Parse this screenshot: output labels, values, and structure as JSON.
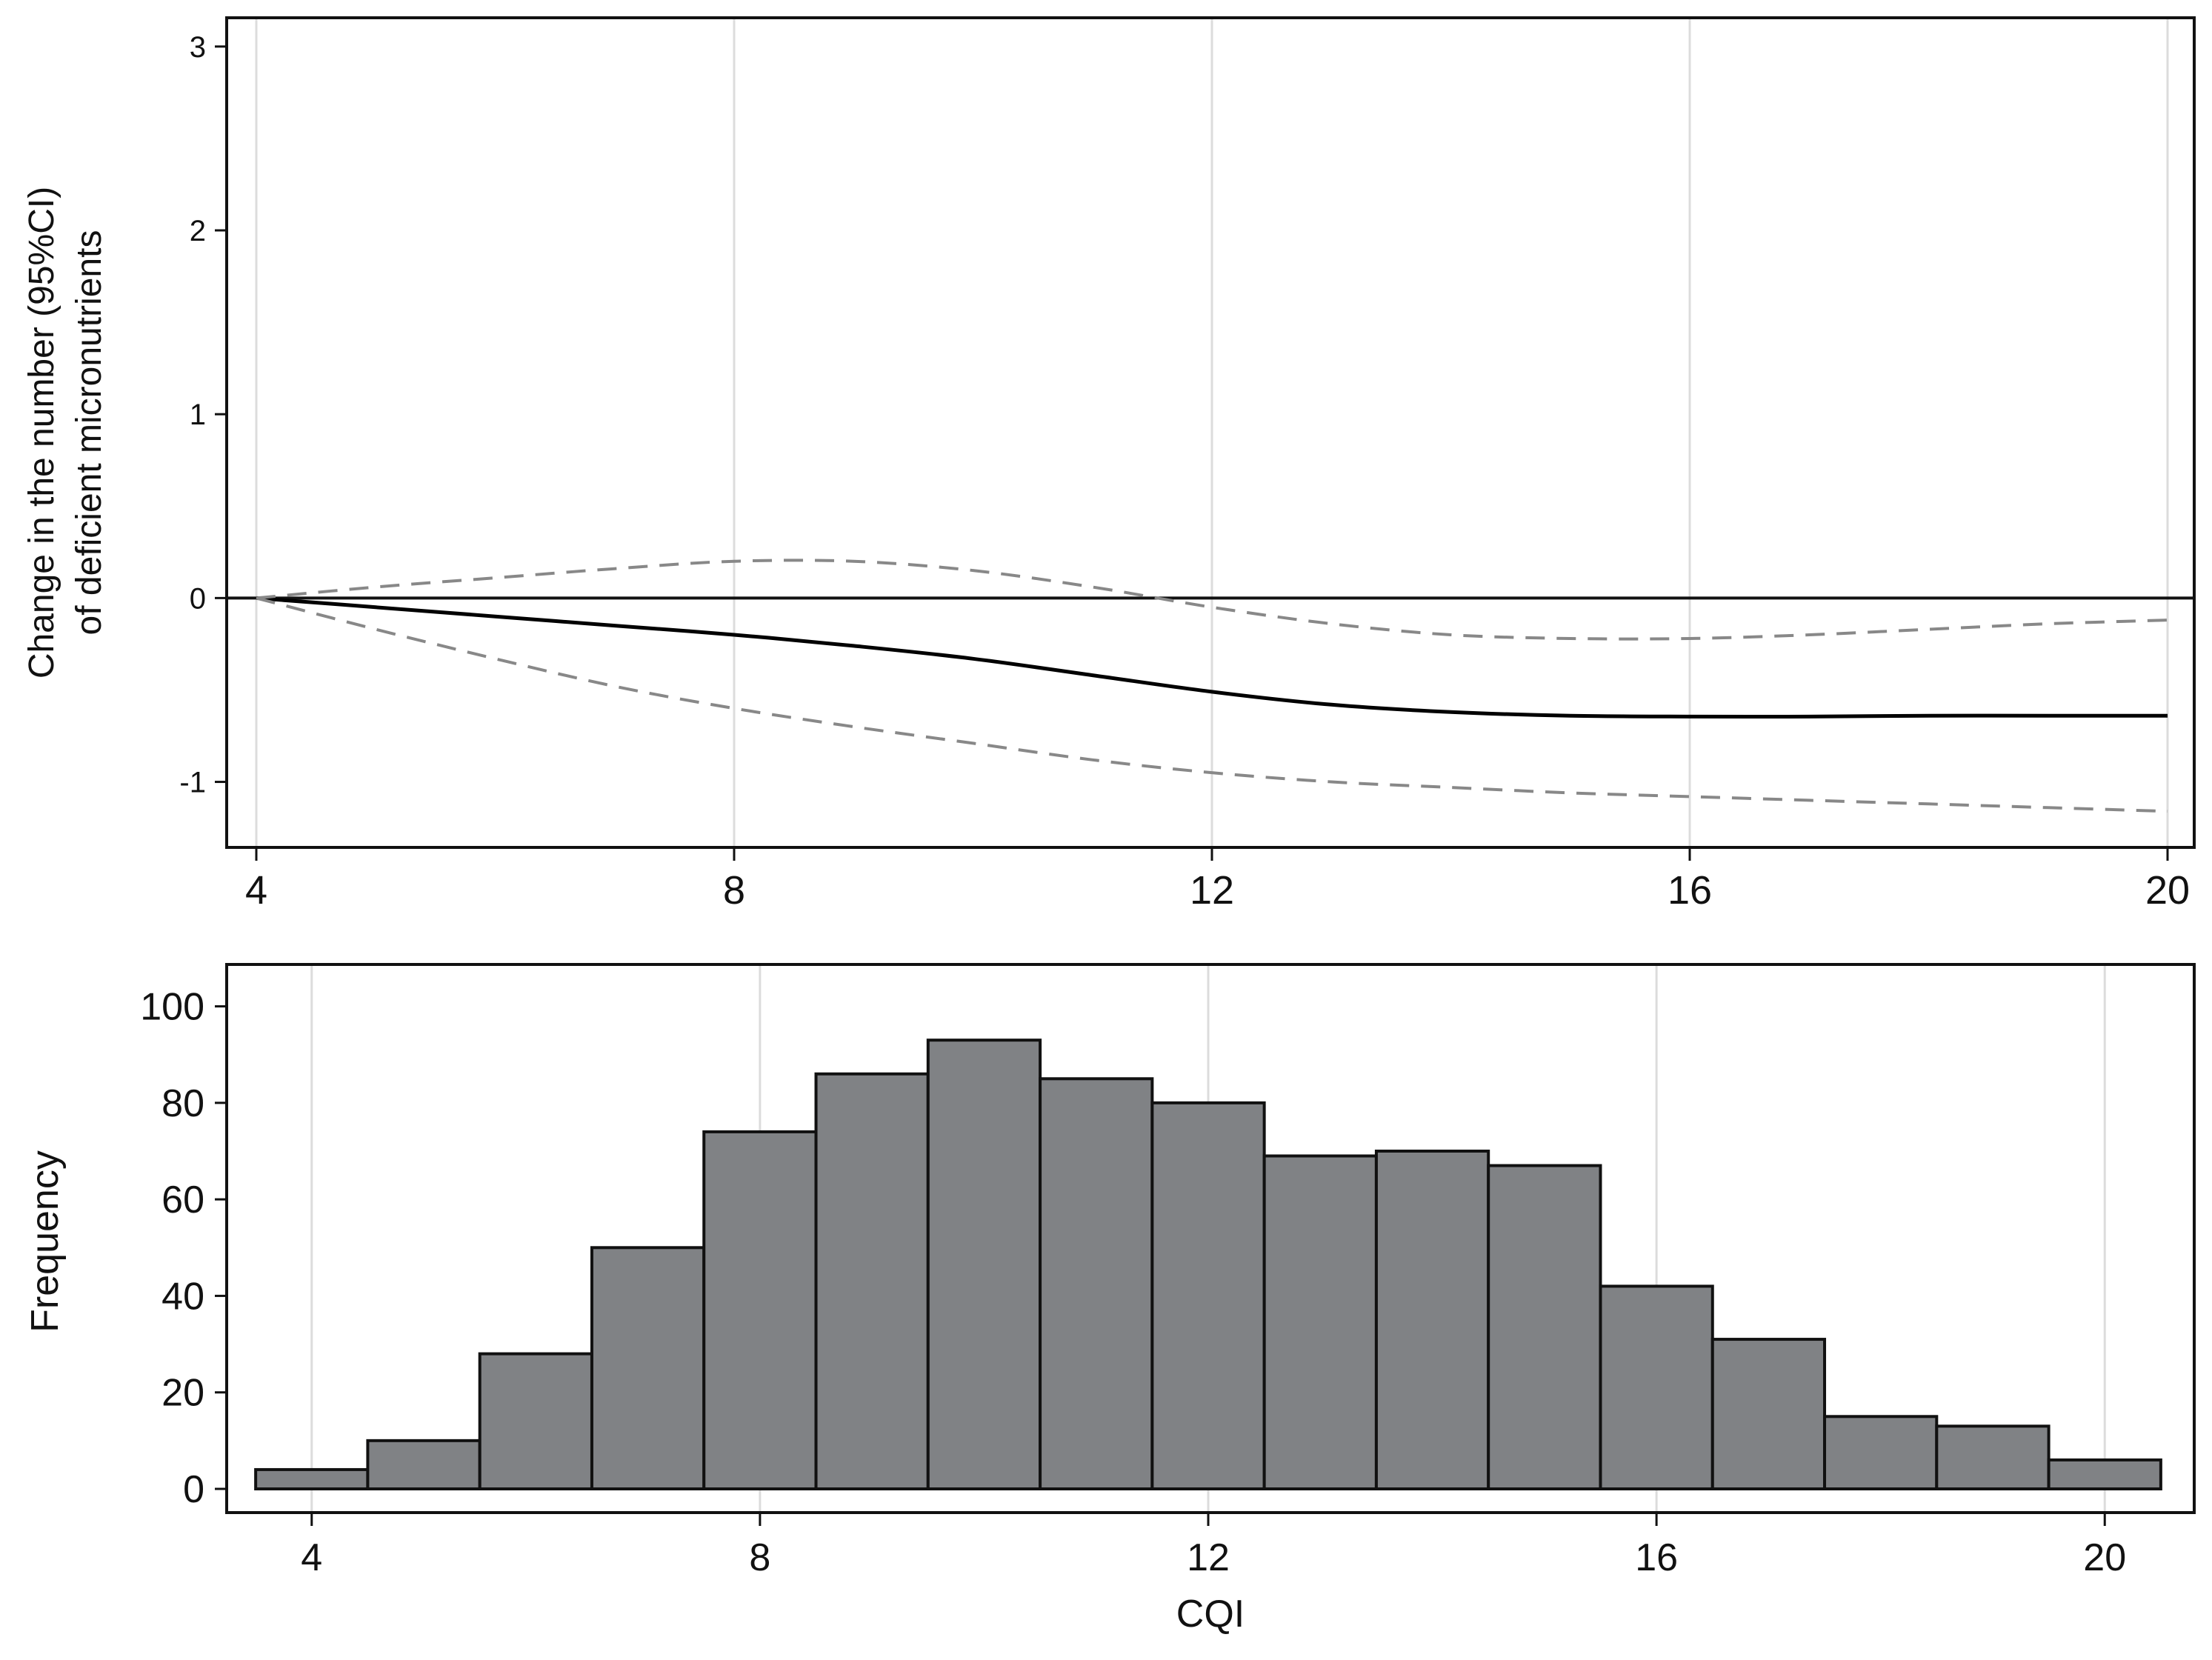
{
  "chart_data": [
    {
      "type": "line",
      "title": "",
      "xlabel": "",
      "ylabel": "Change in the number (95%CI)",
      "ylabel2": "of deficient micronutrients",
      "xlim": [
        4,
        20
      ],
      "ylim": [
        -1.3,
        3.1
      ],
      "x_ticks": [
        "4",
        "8",
        "12",
        "16",
        "20"
      ],
      "y_ticks": [
        "3",
        "2",
        "1",
        "0",
        "-1"
      ],
      "grid": "vertical",
      "reference_line": 0,
      "series": [
        {
          "style": "solid",
          "color": "#000000",
          "x": [
            4,
            5,
            6,
            7,
            8,
            9,
            10,
            11,
            12,
            13,
            14,
            15,
            16,
            17,
            18,
            19,
            20
          ],
          "y": [
            0,
            -0.05,
            -0.1,
            -0.15,
            -0.2,
            -0.26,
            -0.33,
            -0.42,
            -0.51,
            -0.58,
            -0.62,
            -0.64,
            -0.645,
            -0.645,
            -0.64,
            -0.64,
            -0.64
          ]
        },
        {
          "style": "dashed",
          "color": "#888888",
          "x": [
            4,
            5,
            6,
            7,
            8,
            9,
            10,
            11,
            12,
            13,
            14,
            15,
            16,
            17,
            18,
            19,
            20
          ],
          "y": [
            0,
            0.06,
            0.11,
            0.16,
            0.2,
            0.2,
            0.15,
            0.06,
            -0.05,
            -0.14,
            -0.2,
            -0.22,
            -0.22,
            -0.2,
            -0.17,
            -0.14,
            -0.12
          ]
        },
        {
          "style": "dashed",
          "color": "#888888",
          "x": [
            4,
            5,
            6,
            7,
            8,
            9,
            10,
            11,
            12,
            13,
            14,
            15,
            16,
            17,
            18,
            19,
            20
          ],
          "y": [
            0,
            -0.17,
            -0.33,
            -0.48,
            -0.6,
            -0.7,
            -0.79,
            -0.88,
            -0.95,
            -1.0,
            -1.03,
            -1.06,
            -1.08,
            -1.1,
            -1.12,
            -1.14,
            -1.16
          ]
        }
      ]
    },
    {
      "type": "bar",
      "title": "",
      "xlabel": "CQI",
      "ylabel": "Frequency",
      "xlim": [
        3.4,
        20.6
      ],
      "ylim": [
        0,
        105
      ],
      "x_ticks": [
        "4",
        "8",
        "12",
        "16",
        "20"
      ],
      "y_ticks": [
        "100",
        "80",
        "60",
        "40",
        "20",
        "0"
      ],
      "grid": "vertical",
      "bar_color": "#808285",
      "categories": [
        "4",
        "5",
        "6",
        "7",
        "8",
        "9",
        "10",
        "11",
        "12",
        "13",
        "14",
        "15",
        "16",
        "17",
        "18",
        "19",
        "20"
      ],
      "values": [
        4,
        10,
        28,
        50,
        74,
        86,
        93,
        85,
        80,
        69,
        70,
        67,
        42,
        31,
        15,
        13,
        6
      ]
    }
  ]
}
